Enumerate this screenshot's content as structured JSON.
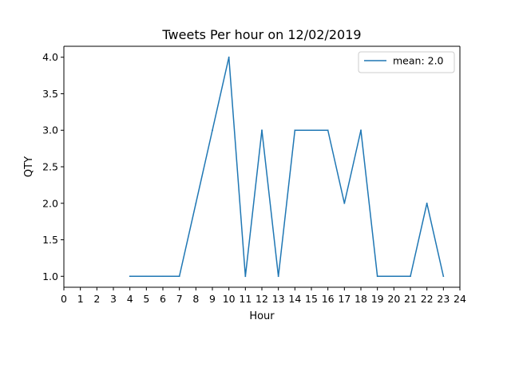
{
  "chart_data": {
    "type": "line",
    "title": "Tweets Per hour on 12/02/2019",
    "xlabel": "Hour",
    "ylabel": "QTY",
    "xlim": [
      0,
      24
    ],
    "ylim": [
      0.85,
      4.15
    ],
    "xticks": [
      0,
      1,
      2,
      3,
      4,
      5,
      6,
      7,
      8,
      9,
      10,
      11,
      12,
      13,
      14,
      15,
      16,
      17,
      18,
      19,
      20,
      21,
      22,
      23,
      24
    ],
    "yticks": [
      1.0,
      1.5,
      2.0,
      2.5,
      3.0,
      3.5,
      4.0
    ],
    "grid": false,
    "legend_position": "top-right",
    "color": "#1f77b4",
    "series": [
      {
        "name": "mean: 2.0",
        "x": [
          4,
          5,
          6,
          7,
          8,
          9,
          10,
          11,
          12,
          13,
          14,
          15,
          16,
          17,
          18,
          19,
          20,
          21,
          22,
          23
        ],
        "y": [
          1,
          1,
          1,
          1,
          2,
          3,
          4,
          1,
          3,
          1,
          3,
          3,
          3,
          2,
          3,
          1,
          1,
          1,
          2,
          1
        ]
      }
    ]
  }
}
